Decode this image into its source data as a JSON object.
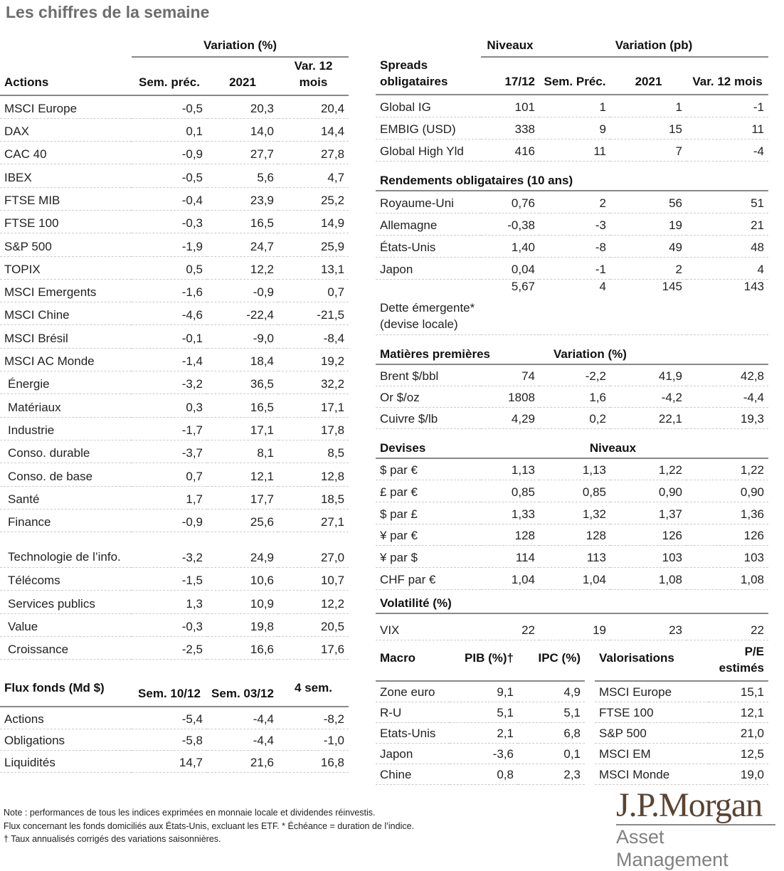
{
  "title": "Les chiffres de la semaine",
  "actions": {
    "group": "Variation (%)",
    "headers": [
      "Actions",
      "Sem. préc.",
      "2021",
      "Var. 12 mois"
    ],
    "rows": [
      [
        "MSCI Europe",
        "-0,5",
        "20,3",
        "20,4"
      ],
      [
        "DAX",
        "0,1",
        "14,0",
        "14,4"
      ],
      [
        "CAC 40",
        "-0,9",
        "27,7",
        "27,8"
      ],
      [
        "IBEX",
        "-0,5",
        "5,6",
        "4,7"
      ],
      [
        "FTSE MIB",
        "-0,4",
        "23,9",
        "25,2"
      ],
      [
        "FTSE 100",
        "-0,3",
        "16,5",
        "14,9"
      ],
      [
        "S&P 500",
        "-1,9",
        "24,7",
        "25,9"
      ],
      [
        "TOPIX",
        "0,5",
        "12,2",
        "13,1"
      ],
      [
        "MSCI Emergents",
        "-1,6",
        "-0,9",
        "0,7"
      ],
      [
        "MSCI Chine",
        "-4,6",
        "-22,4",
        "-21,5"
      ],
      [
        "MSCI Brésil",
        "-0,1",
        "-9,0",
        "-8,4"
      ],
      [
        "MSCI AC Monde",
        "-1,4",
        "18,4",
        "19,2"
      ],
      [
        "Énergie",
        "-3,2",
        "36,5",
        "32,2"
      ],
      [
        "Matériaux",
        "0,3",
        "16,5",
        "17,1"
      ],
      [
        "Industrie",
        "-1,7",
        "17,1",
        "17,8"
      ],
      [
        "Conso. durable",
        "-3,7",
        "8,1",
        "8,5"
      ],
      [
        "Conso. de base",
        "0,7",
        "12,1",
        "12,8"
      ],
      [
        "Santé",
        "1,7",
        "17,7",
        "18,5"
      ],
      [
        "Finance",
        "-0,9",
        "25,6",
        "27,1"
      ],
      [
        "Technologie de l’info.",
        "-3,2",
        "24,9",
        "27,0"
      ],
      [
        "Télécoms",
        "-1,5",
        "10,6",
        "10,7"
      ],
      [
        "Services publics",
        "1,3",
        "10,9",
        "12,2"
      ],
      [
        "Value",
        "-0,3",
        "19,8",
        "20,5"
      ],
      [
        "Croissance",
        "-2,5",
        "16,6",
        "17,6"
      ]
    ]
  },
  "flux": {
    "headers": [
      "Flux fonds (Md $)",
      "Sem. 10/12",
      "Sem. 03/12",
      "4 sem."
    ],
    "rows": [
      [
        "Actions",
        "-5,4",
        "-4,4",
        "-8,2"
      ],
      [
        "Obligations",
        "-5,8",
        "-4,4",
        "-1,0"
      ],
      [
        "Liquidités",
        "14,7",
        "21,6",
        "16,8"
      ]
    ]
  },
  "spreads": {
    "group_levels": "Niveaux",
    "group_var": "Variation (pb)",
    "headers": [
      "Spreads obligataires",
      "17/12",
      "Sem. Préc.",
      "2021",
      "Var. 12 mois"
    ],
    "rows": [
      [
        "Global IG",
        "101",
        "1",
        "1",
        "-1"
      ],
      [
        "EMBIG (USD)",
        "338",
        "9",
        "15",
        "11"
      ],
      [
        "Global High Yld",
        "416",
        "11",
        "7",
        "-4"
      ]
    ]
  },
  "rendements": {
    "title": "Rendements obligataires (10 ans)",
    "rows": [
      [
        "Royaume-Uni",
        "0,76",
        "2",
        "56",
        "51"
      ],
      [
        "Allemagne",
        "-0,38",
        "-3",
        "19",
        "21"
      ],
      [
        "États-Unis",
        "1,40",
        "-8",
        "49",
        "48"
      ],
      [
        "Japon",
        "0,04",
        "-1",
        "2",
        "4"
      ],
      [
        "Dette émergente* (devise locale)",
        "5,67",
        "4",
        "145",
        "143"
      ]
    ]
  },
  "matieres": {
    "title": "Matières premières",
    "group": "Variation (%)",
    "rows": [
      [
        "Brent $/bbl",
        "74",
        "-2,2",
        "41,9",
        "42,8"
      ],
      [
        "Or $/oz",
        "1808",
        "1,6",
        "-4,2",
        "-4,4"
      ],
      [
        "Cuivre $/lb",
        "4,29",
        "0,2",
        "22,1",
        "19,3"
      ]
    ]
  },
  "devises": {
    "title": "Devises",
    "group": "Niveaux",
    "rows": [
      [
        "$ par €",
        "1,13",
        "1,13",
        "1,22",
        "1,22"
      ],
      [
        "£ par €",
        "0,85",
        "0,85",
        "0,90",
        "0,90"
      ],
      [
        "$ par £",
        "1,33",
        "1,32",
        "1,37",
        "1,36"
      ],
      [
        "¥ par €",
        "128",
        "128",
        "126",
        "126"
      ],
      [
        "¥ par $",
        "114",
        "113",
        "103",
        "103"
      ],
      [
        "CHF par €",
        "1,04",
        "1,04",
        "1,08",
        "1,08"
      ]
    ]
  },
  "volatilite": {
    "title": "Volatilité (%)",
    "rows": [
      [
        "VIX",
        "22",
        "19",
        "23",
        "22"
      ]
    ]
  },
  "macro": {
    "headers": [
      "Macro",
      "PIB (%)†",
      "IPC (%)"
    ],
    "rows": [
      [
        "Zone euro",
        "9,1",
        "4,9"
      ],
      [
        "R-U",
        "5,1",
        "5,1"
      ],
      [
        "Etats-Unis",
        "2,1",
        "6,8"
      ],
      [
        "Japon",
        "-3,6",
        "0,1"
      ],
      [
        "Chine",
        "0,8",
        "2,3"
      ]
    ]
  },
  "valorisations": {
    "headers": [
      "Valorisations",
      "P/E estimés"
    ],
    "rows": [
      [
        "MSCI Europe",
        "15,1"
      ],
      [
        "FTSE 100",
        "12,1"
      ],
      [
        "S&P 500",
        "21,0"
      ],
      [
        "MSCI EM",
        "12,5"
      ],
      [
        "MSCI Monde",
        "19,0"
      ]
    ]
  },
  "notes": [
    "Note : performances de tous les indices exprimées en monnaie locale et dividendes réinvestis.",
    "Flux concernant les fonds domiciliés aux États-Unis, excluant les ETF. * Échéance = duration de l’indice.",
    "† Taux annualisés corrigés des variations saisonnières."
  ],
  "logo": {
    "name": "J.P.Morgan",
    "sub": "Asset Management",
    "colors": {
      "brand": "#5b4332",
      "sub": "#808080"
    }
  }
}
